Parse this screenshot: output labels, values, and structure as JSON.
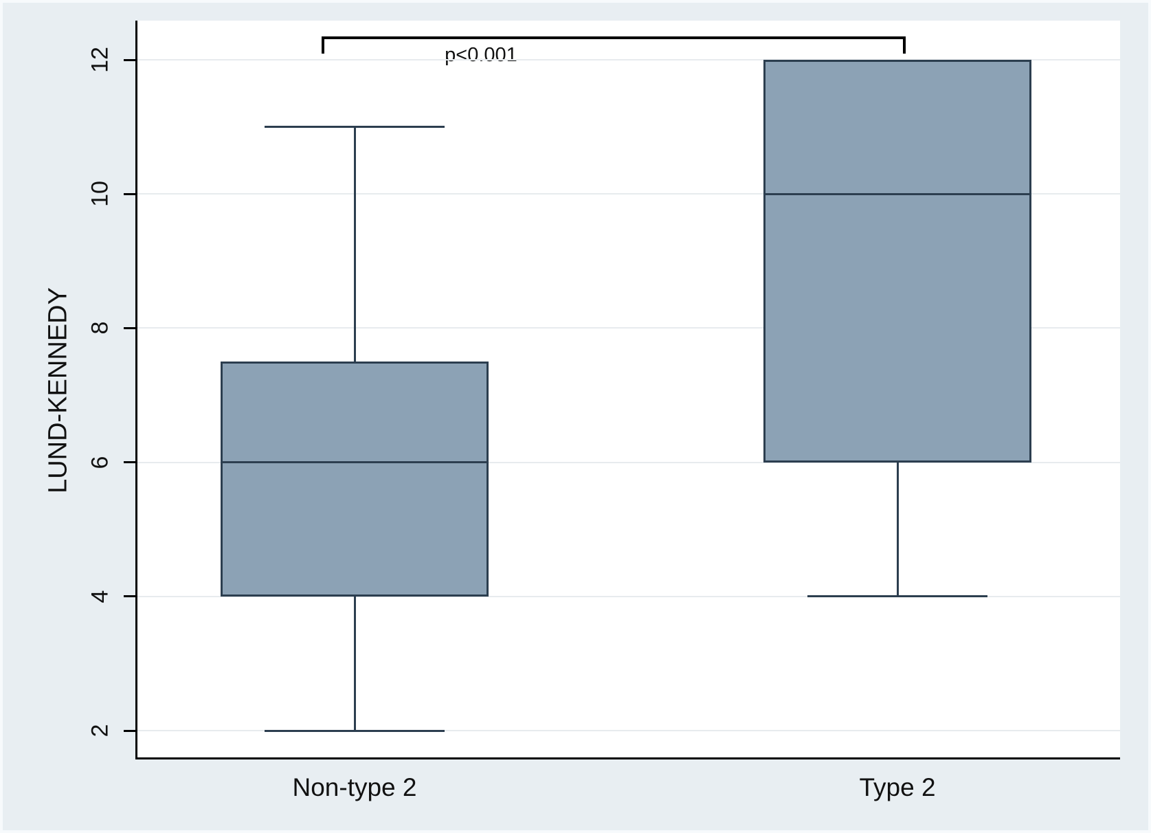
{
  "figure": {
    "background_color": "#e8eef2",
    "plot_background_color": "#ffffff",
    "grid_color": "#e7ebee",
    "axis_color": "#000000",
    "text_color": "#111111",
    "box_fill_color": "#8ca2b5",
    "box_border_color": "#2c3e4f"
  },
  "chart_data": {
    "type": "box",
    "title": "",
    "xlabel": "",
    "ylabel": "LUND-KENNEDY",
    "ylim": [
      2,
      12
    ],
    "yticks": [
      2,
      4,
      6,
      8,
      10,
      12
    ],
    "grid": "horizontal",
    "legend": "none",
    "categories": [
      "Non-type 2",
      "Type 2"
    ],
    "series": [
      {
        "name": "Non-type 2",
        "whisker_low": 2,
        "q1": 4,
        "median": 6,
        "q3": 7.5,
        "whisker_high": 11
      },
      {
        "name": "Type 2",
        "whisker_low": 4,
        "q1": 6,
        "median": 10,
        "q3": 12,
        "whisker_high": 12
      }
    ],
    "annotation": {
      "text": "p<0.001",
      "compares": [
        "Non-type 2",
        "Type 2"
      ]
    }
  }
}
